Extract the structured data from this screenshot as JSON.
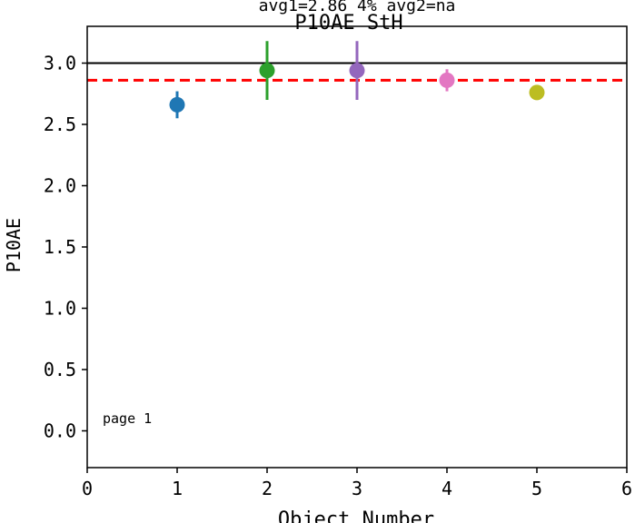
{
  "chart_data": {
    "type": "scatter",
    "title": "P10AE StH",
    "subtitle": "avg1=2.86 4% avg2=na",
    "xlabel": "Object Number",
    "ylabel": "P10AE",
    "xlim": [
      0,
      6
    ],
    "ylim": [
      -0.3,
      3.3
    ],
    "xticks": [
      "0",
      "1",
      "2",
      "3",
      "4",
      "5",
      "6"
    ],
    "yticks": [
      "0.0",
      "0.5",
      "1.0",
      "1.5",
      "2.0",
      "2.5",
      "3.0"
    ],
    "grid": false,
    "reference_lines": [
      {
        "y": 3.0,
        "style": "solid",
        "color": "#000000"
      },
      {
        "y": 2.86,
        "style": "dashed",
        "color": "#ff0000"
      }
    ],
    "points": [
      {
        "x": 1,
        "y": 2.66,
        "err": 0.11,
        "color": "#1f77b4"
      },
      {
        "x": 2,
        "y": 2.94,
        "err": 0.24,
        "color": "#2ca02c"
      },
      {
        "x": 3,
        "y": 2.94,
        "err": 0.24,
        "color": "#9467bd"
      },
      {
        "x": 4,
        "y": 2.86,
        "err": 0.09,
        "color": "#e377c2"
      },
      {
        "x": 5,
        "y": 2.76,
        "err": 0.0,
        "color": "#bcbd22"
      }
    ],
    "annotation": "page 1"
  }
}
